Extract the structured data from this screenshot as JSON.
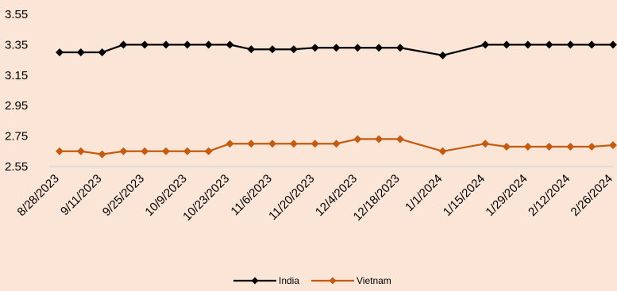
{
  "chart_data": {
    "type": "line",
    "title": "",
    "xlabel": "",
    "ylabel": "",
    "ylim": [
      2.55,
      3.55
    ],
    "y_ticks": [
      "3.55",
      "3.35",
      "3.15",
      "2.95",
      "2.75",
      "2.55"
    ],
    "x_tick_labels": [
      "8/28/2023",
      "9/11/2023",
      "9/25/2023",
      "10/9/2023",
      "10/23/2023",
      "11/6/2023",
      "11/20/2023",
      "12/4/2023",
      "12/18/2023",
      "1/1/2024",
      "1/15/2024",
      "1/29/2024",
      "2/12/2024",
      "2/26/2024"
    ],
    "x": [
      "8/28/2023",
      "9/4/2023",
      "9/11/2023",
      "9/18/2023",
      "9/25/2023",
      "10/2/2023",
      "10/9/2023",
      "10/16/2023",
      "10/23/2023",
      "10/30/2023",
      "11/6/2023",
      "11/13/2023",
      "11/20/2023",
      "11/27/2023",
      "12/4/2023",
      "12/11/2023",
      "12/18/2023",
      "12/25/2023",
      "1/1/2024",
      "1/8/2024",
      "1/15/2024",
      "1/22/2024",
      "1/29/2024",
      "2/5/2024",
      "2/12/2024",
      "2/19/2024",
      "2/26/2024"
    ],
    "missing_x": [
      "12/25/2023",
      "1/8/2024"
    ],
    "series": [
      {
        "name": "India",
        "color": "#000000",
        "values": [
          3.3,
          3.3,
          3.3,
          3.35,
          3.35,
          3.35,
          3.35,
          3.35,
          3.35,
          3.32,
          3.32,
          3.32,
          3.33,
          3.33,
          3.33,
          3.33,
          3.33,
          null,
          3.28,
          null,
          3.35,
          3.35,
          3.35,
          3.35,
          3.35,
          3.35,
          3.35
        ]
      },
      {
        "name": "Vietnam",
        "color": "#c55a11",
        "values": [
          2.65,
          2.65,
          2.63,
          2.65,
          2.65,
          2.65,
          2.65,
          2.65,
          2.7,
          2.7,
          2.7,
          2.7,
          2.7,
          2.7,
          2.73,
          2.73,
          2.73,
          null,
          2.65,
          null,
          2.7,
          2.68,
          2.68,
          2.68,
          2.68,
          2.68,
          2.69
        ]
      }
    ],
    "grid": false,
    "legend": "bottom"
  }
}
